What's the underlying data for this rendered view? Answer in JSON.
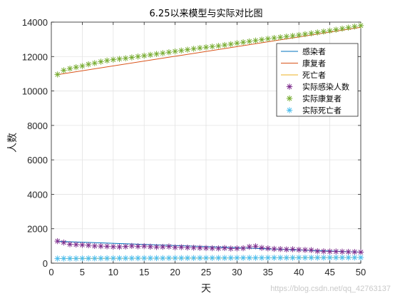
{
  "chart_data": {
    "type": "line",
    "title": "6.25以来模型与实际对比图",
    "xlabel": "天",
    "ylabel": "人数",
    "xlim": [
      0,
      50
    ],
    "ylim": [
      0,
      14000
    ],
    "xticks": [
      0,
      5,
      10,
      15,
      20,
      25,
      30,
      35,
      40,
      45,
      50
    ],
    "yticks": [
      0,
      2000,
      4000,
      6000,
      8000,
      10000,
      12000,
      14000
    ],
    "grid": true,
    "legend_position": "top-right",
    "series": [
      {
        "name": "感染者",
        "style": "line",
        "color": "#0072BD",
        "x": [
          1,
          50
        ],
        "values": [
          1270,
          640
        ]
      },
      {
        "name": "康复者",
        "style": "line",
        "color": "#D95319",
        "x": [
          1,
          50
        ],
        "values": [
          10950,
          13700
        ]
      },
      {
        "name": "死亡者",
        "style": "line",
        "color": "#EDB120",
        "x": [
          1,
          50
        ],
        "values": [
          270,
          330
        ]
      },
      {
        "name": "实际感染人数",
        "style": "marker",
        "marker": "*",
        "color": "#7E2F8E",
        "x": [
          1,
          2,
          3,
          4,
          5,
          6,
          7,
          8,
          9,
          10,
          11,
          12,
          13,
          14,
          15,
          16,
          17,
          18,
          19,
          20,
          21,
          22,
          23,
          24,
          25,
          26,
          27,
          28,
          29,
          30,
          31,
          32,
          33,
          34,
          35,
          36,
          37,
          38,
          39,
          40,
          41,
          42,
          43,
          44,
          45,
          46,
          47,
          48,
          49,
          50
        ],
        "values": [
          1280,
          1200,
          1100,
          1080,
          1060,
          1040,
          1000,
          990,
          980,
          960,
          950,
          970,
          1000,
          980,
          990,
          960,
          940,
          950,
          970,
          920,
          930,
          910,
          900,
          890,
          880,
          870,
          860,
          880,
          850,
          860,
          870,
          950,
          980,
          890,
          860,
          830,
          820,
          800,
          810,
          780,
          770,
          760,
          700,
          690,
          680,
          680,
          670,
          660,
          650,
          640
        ]
      },
      {
        "name": "实际康复者",
        "style": "marker",
        "marker": "*",
        "color": "#77AC30",
        "x": [
          1,
          2,
          3,
          4,
          5,
          6,
          7,
          8,
          9,
          10,
          11,
          12,
          13,
          14,
          15,
          16,
          17,
          18,
          19,
          20,
          21,
          22,
          23,
          24,
          25,
          26,
          27,
          28,
          29,
          30,
          31,
          32,
          33,
          34,
          35,
          36,
          37,
          38,
          39,
          40,
          41,
          42,
          43,
          44,
          45,
          46,
          47,
          48,
          49,
          50
        ],
        "values": [
          10960,
          11200,
          11300,
          11380,
          11450,
          11550,
          11620,
          11700,
          11770,
          11820,
          11860,
          11900,
          11950,
          12000,
          12050,
          12100,
          12150,
          12200,
          12250,
          12300,
          12350,
          12400,
          12450,
          12500,
          12540,
          12580,
          12620,
          12670,
          12720,
          12780,
          12830,
          12880,
          12930,
          12980,
          13030,
          13080,
          13120,
          13160,
          13200,
          13250,
          13300,
          13350,
          13400,
          13450,
          13500,
          13560,
          13620,
          13680,
          13740,
          13800
        ]
      },
      {
        "name": "实际死亡者",
        "style": "marker",
        "marker": "*",
        "color": "#4DBEEE",
        "x": [
          1,
          2,
          3,
          4,
          5,
          6,
          7,
          8,
          9,
          10,
          11,
          12,
          13,
          14,
          15,
          16,
          17,
          18,
          19,
          20,
          21,
          22,
          23,
          24,
          25,
          26,
          27,
          28,
          29,
          30,
          31,
          32,
          33,
          34,
          35,
          36,
          37,
          38,
          39,
          40,
          41,
          42,
          43,
          44,
          45,
          46,
          47,
          48,
          49,
          50
        ],
        "values": [
          270,
          272,
          274,
          276,
          278,
          280,
          282,
          284,
          286,
          288,
          290,
          291,
          292,
          293,
          294,
          295,
          296,
          297,
          298,
          299,
          300,
          301,
          302,
          303,
          304,
          305,
          306,
          307,
          308,
          309,
          310,
          311,
          312,
          313,
          314,
          315,
          316,
          317,
          318,
          319,
          320,
          321,
          322,
          323,
          324,
          325,
          326,
          327,
          328,
          329
        ]
      }
    ]
  },
  "watermark": "https://blog.csdn.net/qq_42763137"
}
